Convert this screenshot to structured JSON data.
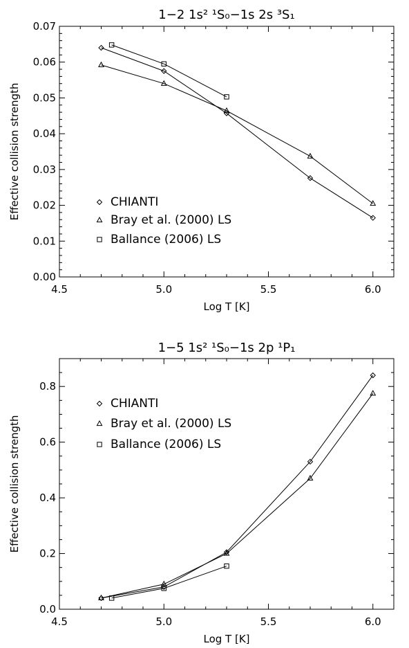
{
  "chart_data": [
    {
      "type": "line",
      "title": "1−2 1s² ¹S₀−1s 2s ³S₁",
      "xlabel": "Log T [K]",
      "ylabel": "Effective collision strength",
      "xlim": [
        4.5,
        6.1
      ],
      "ylim": [
        0.0,
        0.07
      ],
      "xticks": [
        "4.5",
        "5.0",
        "5.5",
        "6.0"
      ],
      "yticks": [
        "0.00",
        "0.01",
        "0.02",
        "0.03",
        "0.04",
        "0.05",
        "0.06",
        "0.07"
      ],
      "grid": false,
      "legend_position": "left",
      "series": [
        {
          "name": "CHIANTI",
          "marker": "diamond",
          "x": [
            4.7,
            5.0,
            5.3,
            5.7,
            6.0
          ],
          "y": [
            0.064,
            0.0575,
            0.0457,
            0.0276,
            0.0165
          ]
        },
        {
          "name": "Bray et al. (2000) LS",
          "marker": "triangle",
          "x": [
            4.7,
            5.0,
            5.3,
            5.7,
            6.0
          ],
          "y": [
            0.0592,
            0.054,
            0.0464,
            0.0337,
            0.0205
          ]
        },
        {
          "name": "Ballance (2006) LS",
          "marker": "square",
          "x": [
            4.75,
            5.0,
            5.3
          ],
          "y": [
            0.0648,
            0.0595,
            0.0503
          ]
        }
      ]
    },
    {
      "type": "line",
      "title": "1−5 1s² ¹S₀−1s 2p ¹P₁",
      "xlabel": "Log T [K]",
      "ylabel": "Effective collision strength",
      "xlim": [
        4.5,
        6.1
      ],
      "ylim": [
        0.0,
        0.9
      ],
      "xticks": [
        "4.5",
        "5.0",
        "5.5",
        "6.0"
      ],
      "yticks": [
        "0.0",
        "0.2",
        "0.4",
        "0.6",
        "0.8"
      ],
      "grid": false,
      "legend_position": "top-left",
      "series": [
        {
          "name": "CHIANTI",
          "marker": "diamond",
          "x": [
            4.7,
            5.0,
            5.3,
            5.7,
            6.0
          ],
          "y": [
            0.04,
            0.08,
            0.205,
            0.53,
            0.84
          ]
        },
        {
          "name": "Bray et al. (2000) LS",
          "marker": "triangle",
          "x": [
            4.7,
            5.0,
            5.3,
            5.7,
            6.0
          ],
          "y": [
            0.04,
            0.09,
            0.2,
            0.47,
            0.775
          ]
        },
        {
          "name": "Ballance (2006) LS",
          "marker": "square",
          "x": [
            4.75,
            5.0,
            5.3
          ],
          "y": [
            0.04,
            0.075,
            0.155
          ]
        }
      ]
    }
  ]
}
